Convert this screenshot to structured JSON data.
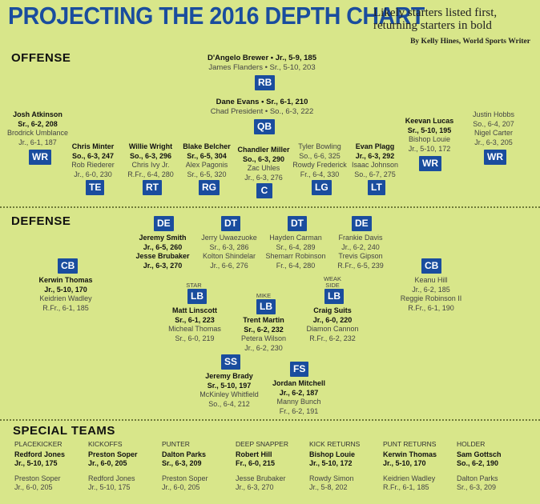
{
  "header": {
    "title": "PROJECTING THE 2016 DEPTH CHART",
    "subtitle": "Likely starters listed first, returning starters in bold",
    "byline": "By Kelly Hines, World Sports Writer"
  },
  "offense": {
    "label": "OFFENSE",
    "rb": {
      "pos": "RB",
      "s1": "D'Angelo Brewer • Jr., 5-9, 185",
      "s2": "James Flanders • Sr., 5-10, 203"
    },
    "qb": {
      "pos": "QB",
      "s1": "Dane Evans • Sr., 6-1, 210",
      "s2": "Chad President • So., 6-3, 222"
    },
    "wr_left": {
      "pos": "WR",
      "s1": "Josh Atkinson",
      "s1b": "Sr., 6-2, 208",
      "s2": "Brodrick Umblance",
      "s2b": "Jr., 6-1, 187"
    },
    "te": {
      "pos": "TE",
      "s1": "Chris Minter",
      "s1b": "So., 6-3, 247",
      "s2": "Rob Riederer",
      "s2b": "Jr., 6-0, 230"
    },
    "rt": {
      "pos": "RT",
      "s1": "Willie Wright",
      "s1b": "So., 6-3, 296",
      "s2": "Chris Ivy Jr.",
      "s2b": "R.Fr., 6-4, 280"
    },
    "rg": {
      "pos": "RG",
      "s1": "Blake Belcher",
      "s1b": "Sr., 6-5, 304",
      "s2": "Alex Pagonis",
      "s2b": "Sr., 6-5, 320"
    },
    "c": {
      "pos": "C",
      "s1": "Chandler Miller",
      "s1b": "So., 6-3, 290",
      "s2": "Zac Uhles",
      "s2b": "Jr., 6-3, 276"
    },
    "lg": {
      "pos": "LG",
      "s1": "Tyler Bowling",
      "s1b": "So., 6-6, 325",
      "s2": "Rowdy Frederick",
      "s2b": "Fr., 6-4, 330"
    },
    "lt": {
      "pos": "LT",
      "s1": "Evan Plagg",
      "s1b": "Jr., 6-3, 292",
      "s2": "Isaac Johnson",
      "s2b": "So., 6-7, 275"
    },
    "wr_mid": {
      "pos": "WR",
      "s1": "Keevan Lucas",
      "s1b": "Sr., 5-10, 195",
      "s2": "Bishop Louie",
      "s2b": "Jr., 5-10, 172"
    },
    "wr_right": {
      "pos": "WR",
      "s1": "Justin Hobbs",
      "s1b": "So., 6-4, 207",
      "s2": "Nigel Carter",
      "s2b": "Jr., 6-3, 205"
    }
  },
  "defense": {
    "label": "DEFENSE",
    "de_left": {
      "pos": "DE",
      "s1": "Jeremy Smith",
      "s1b": "Jr., 6-5, 260",
      "s2": "Jesse Brubaker",
      "s2b": "Jr., 6-3, 270"
    },
    "dt_left": {
      "pos": "DT",
      "s1": "Jerry Uwaezuoke",
      "s1b": "Sr., 6-3, 286",
      "s2": "Kolton Shindelar",
      "s2b": "Jr., 6-6, 276"
    },
    "dt_right": {
      "pos": "DT",
      "s1": "Hayden Carman",
      "s1b": "Sr., 6-4, 289",
      "s2": "Shemarr Robinson",
      "s2b": "Fr., 6-4, 280"
    },
    "de_right": {
      "pos": "DE",
      "s1": "Frankie Davis",
      "s1b": "Jr., 6-2, 240",
      "s2": "Trevis Gipson",
      "s2b": "R.Fr., 6-5, 239"
    },
    "cb_left": {
      "pos": "CB",
      "s1": "Kerwin Thomas",
      "s1b": "Jr., 5-10, 170",
      "s2": "Keidrien Wadley",
      "s2b": "R.Fr., 6-1, 185"
    },
    "cb_right": {
      "pos": "CB",
      "s1": "Keanu Hill",
      "s1b": "Jr., 6-2, 185",
      "s2": "Reggie Robinson II",
      "s2b": "R.Fr., 6-1, 190"
    },
    "lb_star": {
      "tag": "STAR",
      "pos": "LB",
      "s1": "Matt Linscott",
      "s1b": "Sr., 6-1, 223",
      "s2": "Micheal Thomas",
      "s2b": "Sr., 6-0, 219"
    },
    "lb_mike": {
      "tag": "MIKE",
      "pos": "LB",
      "s1": "Trent Martin",
      "s1b": "Sr., 6-2, 232",
      "s2": "Petera Wilson",
      "s2b": "Jr., 6-2, 230"
    },
    "lb_weak": {
      "tag": "WEAK SIDE",
      "pos": "LB",
      "s1": "Craig Suits",
      "s1b": "Jr., 6-0, 220",
      "s2": "Diamon Cannon",
      "s2b": "R.Fr., 6-2, 232"
    },
    "ss": {
      "pos": "SS",
      "s1": "Jeremy Brady",
      "s1b": "Sr., 5-10, 197",
      "s2": "McKinley Whitfield",
      "s2b": "So., 6-4, 212"
    },
    "fs": {
      "pos": "FS",
      "s1": "Jordan Mitchell",
      "s1b": "Jr., 6-2, 187",
      "s2": "Manny Bunch",
      "s2b": "Fr., 6-2, 191"
    }
  },
  "special": {
    "label": "SPECIAL TEAMS",
    "items": [
      {
        "role": "PLACEKICKER",
        "s1": "Redford Jones",
        "s1b": "Jr., 5-10, 175",
        "s2": "Preston Soper",
        "s2b": "Jr., 6-0, 205"
      },
      {
        "role": "KICKOFFS",
        "s1": "Preston Soper",
        "s1b": "Jr., 6-0, 205",
        "s2": "Redford Jones",
        "s2b": "Jr., 5-10, 175"
      },
      {
        "role": "PUNTER",
        "s1": "Dalton Parks",
        "s1b": "Sr., 6-3, 209",
        "s2": "Preston Soper",
        "s2b": "Jr., 6-0, 205"
      },
      {
        "role": "DEEP SNAPPER",
        "s1": "Robert Hill",
        "s1b": "Fr., 6-0, 215",
        "s2": "Jesse Brubaker",
        "s2b": "Jr., 6-3, 270"
      },
      {
        "role": "KICK RETURNS",
        "s1": "Bishop Louie",
        "s1b": "Jr., 5-10, 172",
        "s2": "Rowdy Simon",
        "s2b": "Jr., 5-8, 202"
      },
      {
        "role": "PUNT RETURNS",
        "s1": "Kerwin Thomas",
        "s1b": "Jr., 5-10, 170",
        "s2": "Keidrien Wadley",
        "s2b": "R.Fr., 6-1, 185"
      },
      {
        "role": "HOLDER",
        "s1": "Sam Gottsch",
        "s1b": "So., 6-2, 190",
        "s2": "Dalton Parks",
        "s2b": "Sr., 6-3, 209"
      }
    ]
  }
}
